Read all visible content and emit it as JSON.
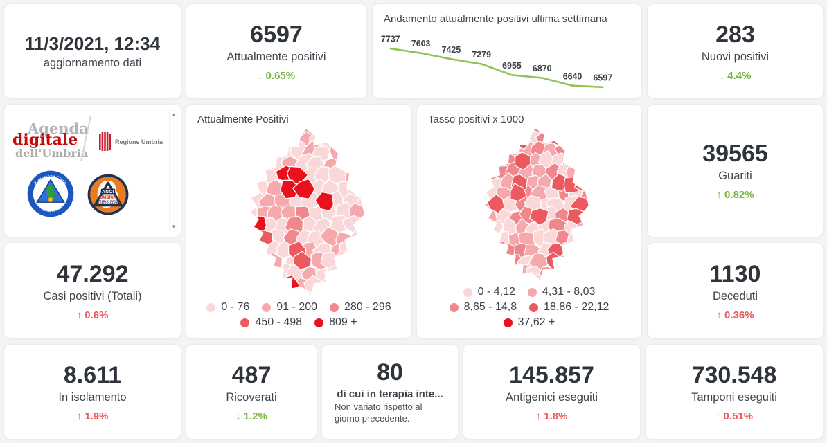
{
  "colors": {
    "green": "#79b543",
    "red": "#ee5a5f",
    "line_green": "#92c158",
    "ink": "#2e343a",
    "label": "#3e454c",
    "page_bg": "#f4f4f5",
    "card_bg": "#ffffff",
    "map_palette": [
      "#fad8da",
      "#f5a9ac",
      "#f0878c",
      "#ec5a60",
      "#e8111c"
    ]
  },
  "stats": {
    "updated": {
      "value": "11/3/2021, 12:34",
      "label": "aggiornamento dati"
    },
    "attualmente_positivi": {
      "value": "6597",
      "label": "Attualmente positivi",
      "delta": "↓ 0.65%",
      "delta_color": "green"
    },
    "nuovi_positivi": {
      "value": "283",
      "label": "Nuovi positivi",
      "delta": "↓ 4.4%",
      "delta_color": "green"
    },
    "guariti": {
      "value": "39565",
      "label": "Guariti",
      "delta": "↑ 0.82%",
      "delta_color": "green"
    },
    "casi_totali": {
      "value": "47.292",
      "label": "Casi positivi (Totali)",
      "delta": "↑ 0.6%",
      "delta_color": "red"
    },
    "deceduti": {
      "value": "1130",
      "label": "Deceduti",
      "delta": "↑ 0.36%",
      "delta_color": "red"
    },
    "in_isolamento": {
      "value": "8.611",
      "label": "In isolamento",
      "delta": "↑ 1.9%",
      "delta_color": "red"
    },
    "ricoverati": {
      "value": "487",
      "label": "Ricoverati",
      "delta": "↓ 1.2%",
      "delta_color": "green"
    },
    "terapia_intensiva": {
      "value": "80",
      "label": "di cui in terapia inte...",
      "note": "Non variato rispetto al giorno precedente."
    },
    "antigenici": {
      "value": "145.857",
      "label": "Antigenici eseguiti",
      "delta": "↑ 1.8%",
      "delta_color": "red"
    },
    "tamponi": {
      "value": "730.548",
      "label": "Tamponi eseguiti",
      "delta": "↑ 0.51%",
      "delta_color": "red"
    }
  },
  "chart_data": {
    "type": "line",
    "title": "Andamento attualmente positivi ultima settimana",
    "values": [
      7737,
      7603,
      7425,
      7279,
      6955,
      6870,
      6640,
      6597
    ],
    "point_labels": [
      "7737",
      "7603",
      "7425",
      "7279",
      "6955",
      "6870",
      "6640",
      "6597"
    ],
    "line_color": "#92c158",
    "grid": false,
    "axes_visible": false,
    "legend_position": "none"
  },
  "maps": [
    {
      "title": "Attualmente Positivi",
      "legend": [
        {
          "label": "0 - 76",
          "color": "#fad8da"
        },
        {
          "label": "91 - 200",
          "color": "#f5a9ac"
        },
        {
          "label": "280 - 296",
          "color": "#f0878c"
        },
        {
          "label": "450 - 498",
          "color": "#ec5a60"
        },
        {
          "label": "809 +",
          "color": "#e8111c"
        }
      ]
    },
    {
      "title": "Tasso positivi x 1000",
      "legend": [
        {
          "label": "0 - 4,12",
          "color": "#fad8da"
        },
        {
          "label": "4,31 - 8,03",
          "color": "#f5a9ac"
        },
        {
          "label": "8,65 - 14,8",
          "color": "#f0878c"
        },
        {
          "label": "18,86 - 22,12",
          "color": "#ec5a60"
        },
        {
          "label": "37,62 +",
          "color": "#e8111c"
        }
      ]
    }
  ],
  "logos": {
    "agenda": {
      "line1": "Agenda",
      "line2": "digitale",
      "line3": "dell'Umbria"
    },
    "regione_umbria": {
      "label": "Regione Umbria"
    },
    "protezione_civile": {
      "arc_top": "Protezione Civile",
      "arc_bottom": "Regione Umbria"
    },
    "anci_prociv": {
      "line1": "ANCI",
      "line2": "UMBRIA",
      "line3": "PROCIV"
    }
  },
  "scrollbar": {
    "up": "▲",
    "down": "▼"
  }
}
